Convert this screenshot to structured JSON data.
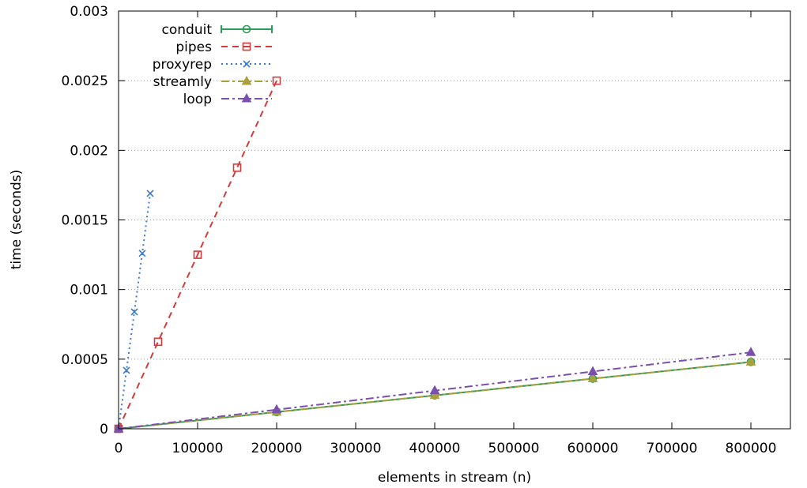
{
  "chart_data": {
    "type": "line",
    "title": "",
    "xlabel": "elements in stream (n)",
    "ylabel": "time (seconds)",
    "xlim": [
      0,
      850000
    ],
    "ylim": [
      0,
      0.003
    ],
    "x_ticks": [
      0,
      100000,
      200000,
      300000,
      400000,
      500000,
      600000,
      700000,
      800000
    ],
    "x_tick_labels": [
      "0",
      "100000",
      "200000",
      "300000",
      "400000",
      "500000",
      "600000",
      "700000",
      "800000"
    ],
    "y_ticks": [
      0,
      0.0005,
      0.001,
      0.0015,
      0.002,
      0.0025,
      0.003
    ],
    "y_tick_labels": [
      "0",
      "0.0005",
      "0.001",
      "0.0015",
      "0.002",
      "0.0025",
      "0.003"
    ],
    "grid": "horizontal dotted",
    "legend_position": "top-left",
    "series": [
      {
        "name": "conduit",
        "color": "#2e9a58",
        "line_style": "solid",
        "marker": "circle",
        "x": [
          0,
          200000,
          400000,
          600000,
          800000
        ],
        "y": [
          0,
          0.00012,
          0.00024,
          0.00036,
          0.00048
        ]
      },
      {
        "name": "pipes",
        "color": "#d43a3a",
        "line_style": "dashed",
        "marker": "square",
        "x": [
          0,
          50000,
          100000,
          150000,
          200000
        ],
        "y": [
          0,
          0.000625,
          0.00125,
          0.001875,
          0.0025
        ]
      },
      {
        "name": "proxyrep",
        "color": "#3c7bc4",
        "line_style": "dotted",
        "marker": "x",
        "x": [
          0,
          10000,
          20000,
          30000,
          40000
        ],
        "y": [
          0,
          0.00042,
          0.00084,
          0.00126,
          0.00169
        ]
      },
      {
        "name": "streamly",
        "color": "#a8a03a",
        "line_style": "dash-dot",
        "marker": "triangle",
        "x": [
          0,
          200000,
          400000,
          600000,
          800000
        ],
        "y": [
          0,
          0.00012,
          0.00024,
          0.00036,
          0.00048
        ]
      },
      {
        "name": "loop",
        "color": "#7a4fae",
        "line_style": "dash-dot",
        "marker": "triangle",
        "x": [
          0,
          200000,
          400000,
          600000,
          800000
        ],
        "y": [
          0,
          0.000137,
          0.000274,
          0.000411,
          0.000549
        ]
      }
    ]
  }
}
